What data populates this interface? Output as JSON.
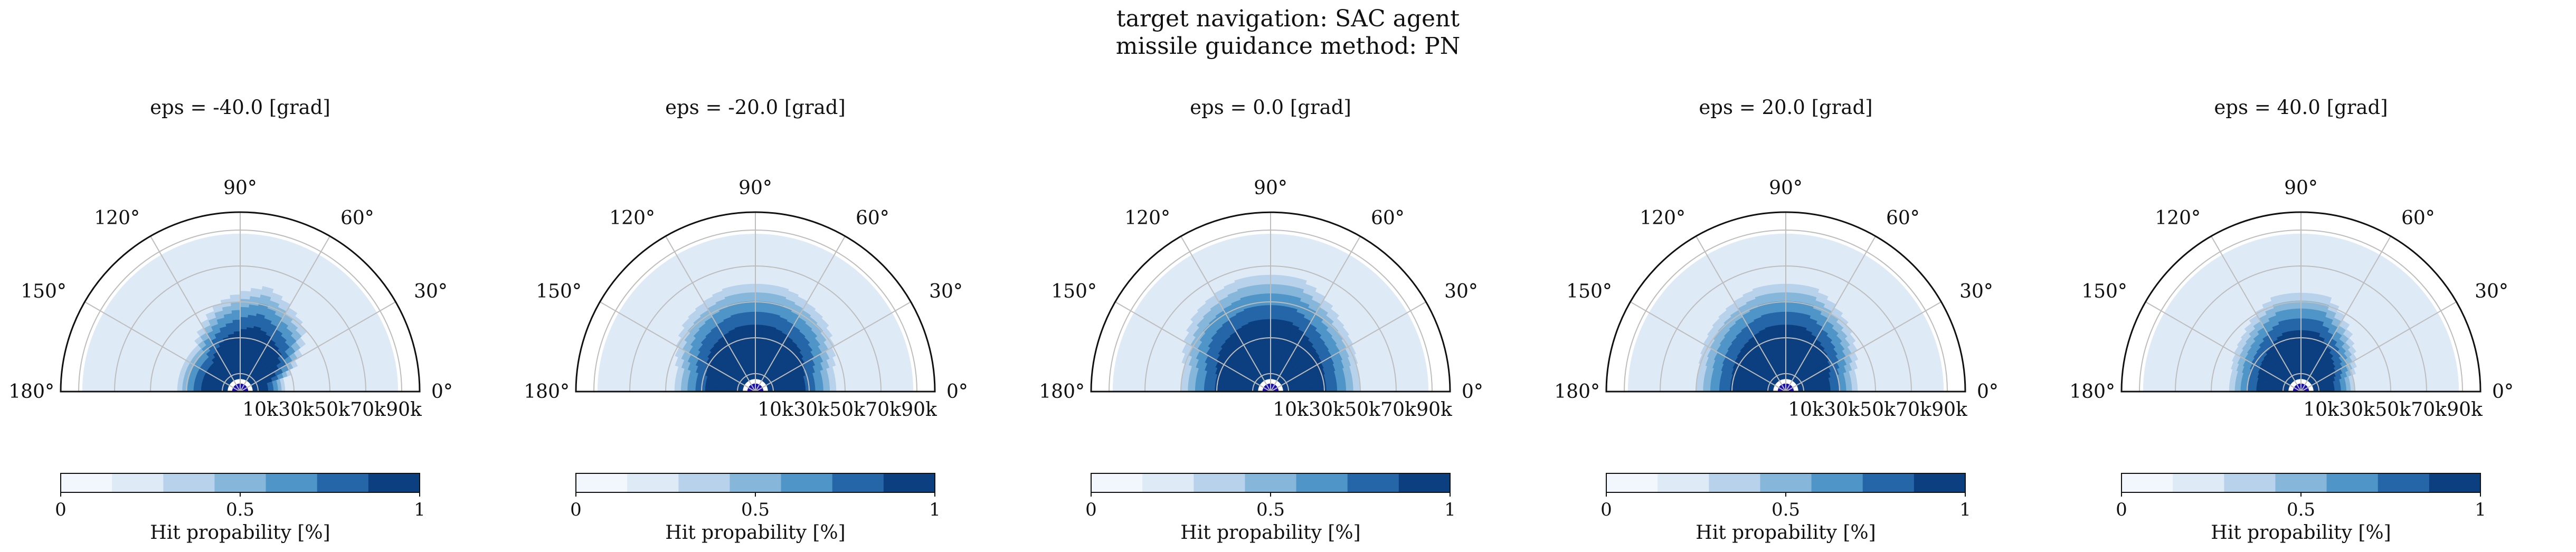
{
  "figure": {
    "title_line1": "target navigation: SAC agent",
    "title_line2": "missile guidance method: PN"
  },
  "colormap": {
    "name": "Blues",
    "levels": [
      "#f2f7fd",
      "#dfeaf7",
      "#b7d2ea",
      "#86b7da",
      "#4f95c8",
      "#2466a8",
      "#0b3f80"
    ],
    "target_marker_color": "#1a0fb3"
  },
  "colorbar": {
    "label": "Hit propability [%]",
    "ticks": [
      "0",
      "0.5",
      "1"
    ],
    "tick_values": [
      0,
      0.5,
      1
    ],
    "bins": 7
  },
  "polar_axes": {
    "angle_tick_labels": [
      "0°",
      "30°",
      "60°",
      "90°",
      "120°",
      "150°",
      "180°"
    ],
    "angle_tick_values": [
      0,
      30,
      60,
      90,
      120,
      150,
      180
    ],
    "radial_tick_labels": [
      "10k",
      "30k",
      "50k",
      "70k",
      "90k"
    ],
    "radial_tick_values": [
      10000,
      30000,
      50000,
      70000,
      90000
    ],
    "rlim": [
      0,
      100000
    ],
    "grid": true
  },
  "chart_data": [
    {
      "type": "heatmap",
      "projection": "polar-half",
      "title": "eps = -40.0 [grad]",
      "value_label": "Hit propability [%]",
      "hit_probability": [
        {
          "angle": 15,
          "r_max": 25000
        },
        {
          "angle": 45,
          "r_max": 50000
        },
        {
          "angle": 75,
          "r_max": 60000
        },
        {
          "angle": 105,
          "r_max": 50000
        },
        {
          "angle": 135,
          "r_max": 35000
        },
        {
          "angle": 165,
          "r_max": 35000
        }
      ]
    },
    {
      "type": "heatmap",
      "projection": "polar-half",
      "title": "eps = -20.0 [grad]",
      "value_label": "Hit propability [%]",
      "hit_probability": [
        {
          "angle": 15,
          "r_max": 45000
        },
        {
          "angle": 45,
          "r_max": 55000
        },
        {
          "angle": 75,
          "r_max": 60000
        },
        {
          "angle": 105,
          "r_max": 60000
        },
        {
          "angle": 135,
          "r_max": 55000
        },
        {
          "angle": 165,
          "r_max": 45000
        }
      ]
    },
    {
      "type": "heatmap",
      "projection": "polar-half",
      "title": "eps = 0.0 [grad]",
      "value_label": "Hit propability [%]",
      "hit_probability": [
        {
          "angle": 15,
          "r_max": 50000
        },
        {
          "angle": 45,
          "r_max": 55000
        },
        {
          "angle": 75,
          "r_max": 65000
        },
        {
          "angle": 105,
          "r_max": 65000
        },
        {
          "angle": 135,
          "r_max": 60000
        },
        {
          "angle": 165,
          "r_max": 50000
        }
      ]
    },
    {
      "type": "heatmap",
      "projection": "polar-half",
      "title": "eps = 20.0 [grad]",
      "value_label": "Hit propability [%]",
      "hit_probability": [
        {
          "angle": 15,
          "r_max": 40000
        },
        {
          "angle": 45,
          "r_max": 50000
        },
        {
          "angle": 75,
          "r_max": 60000
        },
        {
          "angle": 105,
          "r_max": 60000
        },
        {
          "angle": 135,
          "r_max": 55000
        },
        {
          "angle": 165,
          "r_max": 50000
        }
      ]
    },
    {
      "type": "heatmap",
      "projection": "polar-half",
      "title": "eps = 40.0 [grad]",
      "value_label": "Hit propability [%]",
      "hit_probability": [
        {
          "angle": 15,
          "r_max": 30000
        },
        {
          "angle": 45,
          "r_max": 40000
        },
        {
          "angle": 75,
          "r_max": 55000
        },
        {
          "angle": 105,
          "r_max": 55000
        },
        {
          "angle": 135,
          "r_max": 45000
        },
        {
          "angle": 165,
          "r_max": 40000
        }
      ]
    }
  ]
}
